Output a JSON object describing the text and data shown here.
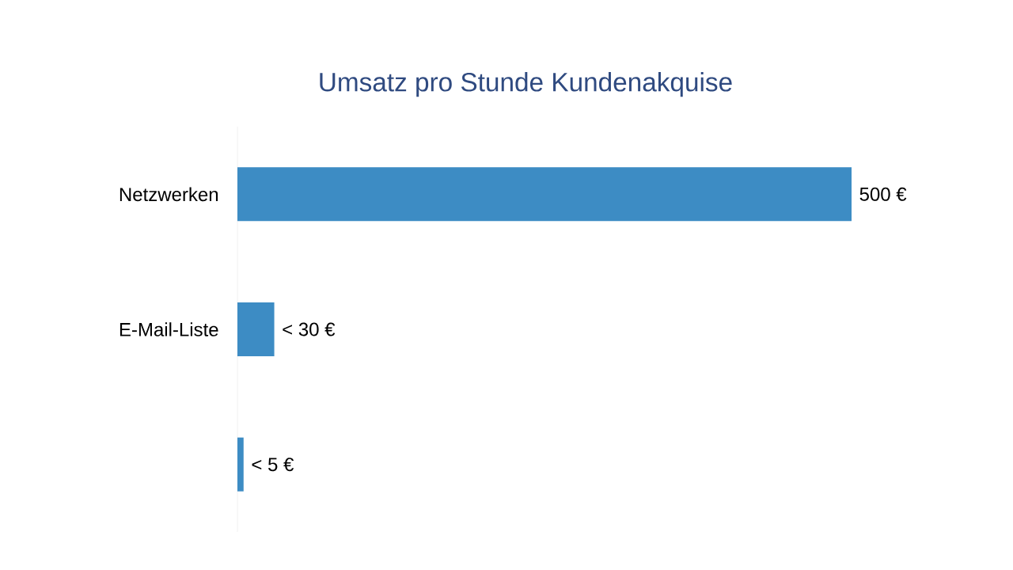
{
  "chart_data": {
    "type": "bar",
    "orientation": "horizontal",
    "title": "Umsatz pro Stunde Kundenakquise",
    "categories": [
      "Netzwerken",
      "E-Mail-Liste",
      null
    ],
    "values": [
      500,
      30,
      5
    ],
    "value_labels": [
      "500 €",
      "< 30 €",
      "< 5 €"
    ],
    "color": "#3d8cc4"
  }
}
